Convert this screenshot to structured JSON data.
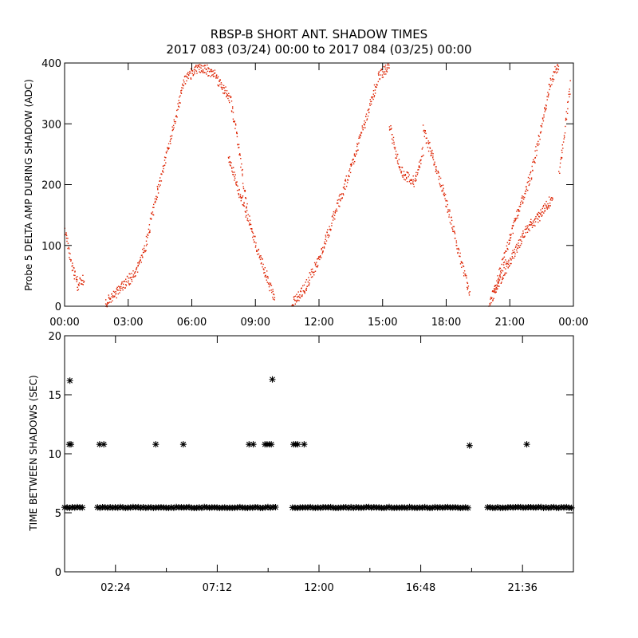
{
  "title_line1": "RBSP-B SHORT ANT. SHADOW TIMES",
  "title_line2": "2017 083 (03/24) 00:00 to 2017 084 (03/25) 00:00",
  "colors": {
    "top_series": "#dd2200",
    "bottom_series": "#000000"
  },
  "chart_data": [
    {
      "type": "scatter",
      "ylabel": "Probe 5 DELTA AMP DURING SHADOW (ADC)",
      "xlabel": "",
      "xlim_hours": [
        0,
        24
      ],
      "xticks_hours": [
        0,
        3,
        6,
        9,
        12,
        15,
        18,
        21,
        24
      ],
      "xtick_labels": [
        "00:00",
        "03:00",
        "06:00",
        "09:00",
        "12:00",
        "15:00",
        "18:00",
        "21:00",
        "00:00"
      ],
      "ylim": [
        0,
        400
      ],
      "yticks": [
        0,
        100,
        200,
        300,
        400
      ],
      "ytick_labels": [
        "0",
        "100",
        "200",
        "300",
        "400"
      ],
      "series": [
        {
          "marker": "dot",
          "color": "#dd2200",
          "trend_segments": [
            {
              "x_hours": [
                0.0,
                0.3,
                0.6,
                0.9
              ],
              "y": [
                130,
                70,
                35,
                45
              ]
            },
            {
              "x_hours": [
                1.9,
                2.6,
                3.3,
                3.8,
                4.3,
                5.0,
                5.6,
                6.3,
                7.0,
                7.8,
                8.2,
                8.6
              ],
              "y": [
                5,
                30,
                55,
                100,
                180,
                280,
                370,
                395,
                385,
                340,
                260,
                160
              ]
            },
            {
              "x_hours": [
                7.7,
                8.2,
                8.7,
                9.2,
                9.6,
                9.9
              ],
              "y": [
                250,
                190,
                140,
                80,
                40,
                10
              ]
            },
            {
              "x_hours": [
                10.7,
                11.3,
                12.0,
                12.8,
                13.6,
                14.3,
                14.8,
                15.3
              ],
              "y": [
                5,
                30,
                80,
                160,
                240,
                320,
                380,
                395
              ]
            },
            {
              "x_hours": [
                15.3,
                15.6,
                16.0,
                16.5,
                16.9
              ],
              "y": [
                300,
                250,
                215,
                205,
                260
              ]
            },
            {
              "x_hours": [
                16.9,
                17.4,
                18.0,
                18.5,
                19.1
              ],
              "y": [
                290,
                240,
                170,
                100,
                20
              ]
            },
            {
              "x_hours": [
                20.0,
                20.6,
                21.2,
                21.8,
                22.4,
                23.0
              ],
              "y": [
                5,
                50,
                90,
                130,
                150,
                180
              ]
            },
            {
              "x_hours": [
                20.2,
                20.8,
                21.4,
                22.0,
                22.5,
                22.9,
                23.3
              ],
              "y": [
                20,
                90,
                160,
                220,
                300,
                370,
                400
              ]
            },
            {
              "x_hours": [
                23.3,
                23.6,
                23.85
              ],
              "y": [
                220,
                300,
                370
              ]
            }
          ]
        }
      ]
    },
    {
      "type": "scatter",
      "ylabel": "TIME BETWEEN SHADOWS (SEC)",
      "xlabel": "",
      "xlim_hours": [
        0,
        24
      ],
      "xticks_hours": [
        2.4,
        7.2,
        12.0,
        16.8,
        21.6
      ],
      "xtick_labels": [
        "02:24",
        "07:12",
        "12:00",
        "16:48",
        "21:36"
      ],
      "minor_xticks_hours": [
        4.8,
        9.6,
        14.4,
        19.2
      ],
      "ylim": [
        0,
        20
      ],
      "yticks": [
        0,
        5,
        10,
        15,
        20
      ],
      "ytick_labels": [
        "0",
        "5",
        "10",
        "15",
        "20"
      ],
      "series": [
        {
          "marker": "star",
          "color": "#000000",
          "baseline_value": 5.45,
          "baseline_ranges_hours": [
            [
              0.0,
              0.95
            ],
            [
              1.55,
              9.95
            ],
            [
              10.75,
              19.1
            ],
            [
              19.95,
              24.0
            ]
          ],
          "outliers": {
            "x_hours": [
              0.25,
              0.22,
              0.3,
              1.65,
              1.85,
              4.3,
              5.6,
              8.7,
              8.9,
              9.45,
              9.55,
              9.65,
              9.75,
              9.8,
              10.8,
              10.9,
              11.0,
              11.3,
              19.1,
              21.8
            ],
            "y": [
              16.2,
              10.8,
              10.8,
              10.8,
              10.8,
              10.8,
              10.8,
              10.8,
              10.8,
              10.8,
              10.8,
              10.8,
              10.8,
              16.3,
              10.8,
              10.8,
              10.8,
              10.8,
              10.7,
              10.8
            ]
          }
        }
      ]
    }
  ]
}
